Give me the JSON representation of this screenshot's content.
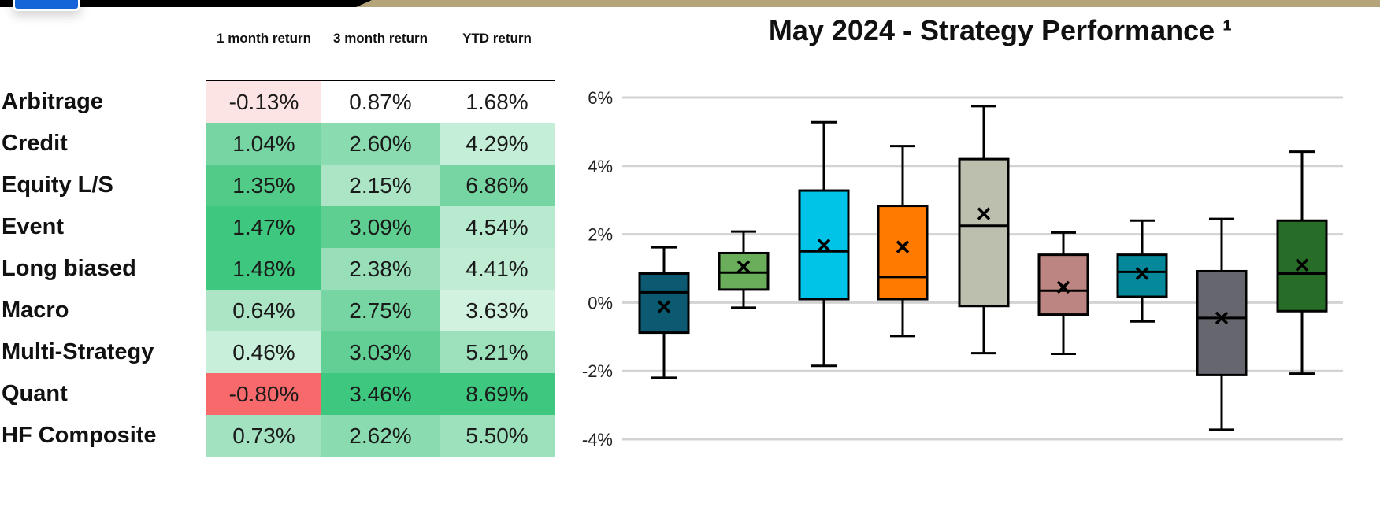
{
  "table": {
    "columns": [
      "1 month return",
      "3 month return",
      "YTD return"
    ],
    "rows": [
      {
        "label": "Arbitrage",
        "values": [
          "-0.13%",
          "0.87%",
          "1.68%"
        ],
        "colors": [
          "#fde4e4",
          "#ffffff",
          "#ffffff"
        ]
      },
      {
        "label": "Credit",
        "values": [
          "1.04%",
          "2.60%",
          "4.29%"
        ],
        "colors": [
          "#76d5a2",
          "#8adbb0",
          "#c4eed7"
        ]
      },
      {
        "label": "Equity L/S",
        "values": [
          "1.35%",
          "2.15%",
          "6.86%"
        ],
        "colors": [
          "#52cb89",
          "#abe5c6",
          "#76d5a2"
        ]
      },
      {
        "label": "Event",
        "values": [
          "1.47%",
          "3.09%",
          "4.54%"
        ],
        "colors": [
          "#3ec77e",
          "#5fcf91",
          "#b8eacf"
        ]
      },
      {
        "label": "Long biased",
        "values": [
          "1.48%",
          "2.38%",
          "4.41%"
        ],
        "colors": [
          "#3ec77e",
          "#98dfb9",
          "#c0ecd4"
        ]
      },
      {
        "label": "Macro",
        "values": [
          "0.64%",
          "2.75%",
          "3.63%"
        ],
        "colors": [
          "#abe5c6",
          "#76d5a2",
          "#d2f2e0"
        ]
      },
      {
        "label": "Multi-Strategy",
        "values": [
          "0.46%",
          "3.03%",
          "5.21%"
        ],
        "colors": [
          "#c8efd9",
          "#62d094",
          "#9de1bc"
        ]
      },
      {
        "label": "Quant",
        "values": [
          "-0.80%",
          "3.46%",
          "8.69%"
        ],
        "colors": [
          "#f8696b",
          "#3ec77e",
          "#3ec77e"
        ]
      },
      {
        "label": "HF Composite",
        "values": [
          "0.73%",
          "2.62%",
          "5.50%"
        ],
        "colors": [
          "#a3e2c0",
          "#8adbb0",
          "#9de1bc"
        ]
      }
    ]
  },
  "chart_data": {
    "type": "boxplot",
    "title": "May 2024 - Strategy Performance ¹",
    "y_ticks": [
      "6%",
      "4%",
      "2%",
      "0%",
      "-2%",
      "-4%"
    ],
    "y_tick_values": [
      6,
      4,
      2,
      0,
      -2,
      -4
    ],
    "ylim": [
      -4.2,
      6.3
    ],
    "grid": true,
    "boxes": [
      {
        "color": "#0b5a72",
        "whisker_low": -2.2,
        "q1": -0.88,
        "median": 0.3,
        "q3": 0.85,
        "whisker_high": 1.62,
        "mean": -0.12
      },
      {
        "color": "#6aad5b",
        "whisker_low": -0.15,
        "q1": 0.38,
        "median": 0.88,
        "q3": 1.45,
        "whisker_high": 2.08,
        "mean": 1.05
      },
      {
        "color": "#00c3e8",
        "whisker_low": -1.85,
        "q1": 0.1,
        "median": 1.5,
        "q3": 3.28,
        "whisker_high": 5.28,
        "mean": 1.68
      },
      {
        "color": "#fe7b00",
        "whisker_low": -0.98,
        "q1": 0.1,
        "median": 0.75,
        "q3": 2.83,
        "whisker_high": 4.58,
        "mean": 1.63
      },
      {
        "color": "#bdbfae",
        "whisker_low": -1.48,
        "q1": -0.1,
        "median": 2.25,
        "q3": 4.2,
        "whisker_high": 5.75,
        "mean": 2.6
      },
      {
        "color": "#bd8581",
        "whisker_low": -1.5,
        "q1": -0.35,
        "median": 0.35,
        "q3": 1.4,
        "whisker_high": 2.05,
        "mean": 0.45
      },
      {
        "color": "#05889a",
        "whisker_low": -0.55,
        "q1": 0.17,
        "median": 0.9,
        "q3": 1.4,
        "whisker_high": 2.4,
        "mean": 0.85
      },
      {
        "color": "#66676e",
        "whisker_low": -3.72,
        "q1": -2.12,
        "median": -0.45,
        "q3": 0.92,
        "whisker_high": 2.45,
        "mean": -0.45
      },
      {
        "color": "#286d27",
        "whisker_low": -2.08,
        "q1": -0.25,
        "median": 0.85,
        "q3": 2.4,
        "whisker_high": 4.42,
        "mean": 1.1
      }
    ]
  }
}
